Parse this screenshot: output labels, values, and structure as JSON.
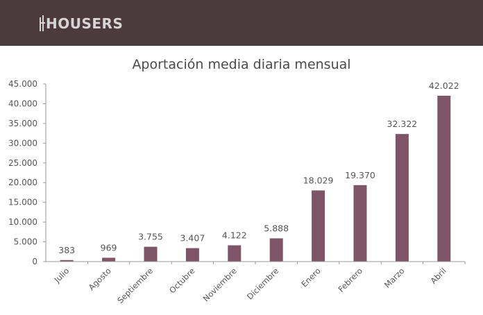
{
  "header": {
    "logo_text": "HOUSERS",
    "background_color": "#4b3b3e"
  },
  "chart_data": {
    "type": "bar",
    "title": "Aportación media diaria mensual",
    "xlabel": "",
    "ylabel": "",
    "categories": [
      "Julio",
      "Agosto",
      "Septiembre",
      "Octubre",
      "Noviembre",
      "Diciembre",
      "Enero",
      "Febrero",
      "Marzo",
      "Abril"
    ],
    "values": [
      383,
      969,
      3755,
      3407,
      4122,
      5888,
      18029,
      19370,
      32322,
      42022
    ],
    "value_labels": [
      "383",
      "969",
      "3.755",
      "3.407",
      "4.122",
      "5.888",
      "18.029",
      "19.370",
      "32.322",
      "42.022"
    ],
    "ylim": [
      0,
      45000
    ],
    "yticks": [
      0,
      5000,
      10000,
      15000,
      20000,
      25000,
      30000,
      35000,
      40000,
      45000
    ],
    "ytick_labels": [
      "0",
      "5.000",
      "10.000",
      "15.000",
      "20.000",
      "25.000",
      "30.000",
      "35.000",
      "40.000",
      "45.000"
    ],
    "grid": false,
    "legend": "none",
    "bar_color": "#7d5566",
    "axis_color": "#9a9a9a"
  }
}
